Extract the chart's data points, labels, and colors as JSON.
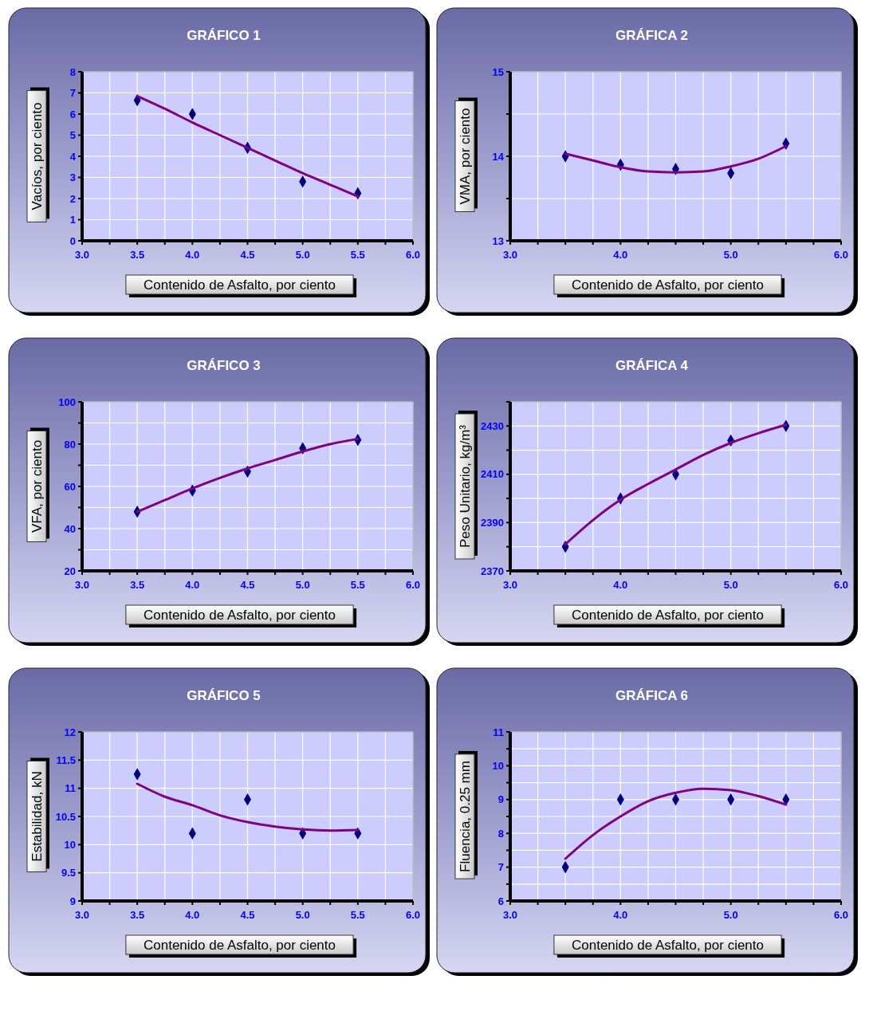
{
  "chart_data": [
    {
      "type": "scatter",
      "title": "GRÁFICO 1",
      "xlabel": "Contenido de Asfalto, por ciento",
      "ylabel": "Vacíos, por ciento",
      "xlim": [
        3,
        6
      ],
      "ylim": [
        0,
        8
      ],
      "grid": true,
      "xticks": [
        {
          "value": 3,
          "label": "3.0"
        },
        {
          "value": 3.25,
          "label": null
        },
        {
          "value": 3.5,
          "label": "3.5"
        },
        {
          "value": 3.75,
          "label": null
        },
        {
          "value": 4,
          "label": "4.0"
        },
        {
          "value": 4.25,
          "label": null
        },
        {
          "value": 4.5,
          "label": "4.5"
        },
        {
          "value": 4.75,
          "label": null
        },
        {
          "value": 5,
          "label": "5.0"
        },
        {
          "value": 5.25,
          "label": null
        },
        {
          "value": 5.5,
          "label": "5.5"
        },
        {
          "value": 5.75,
          "label": null
        },
        {
          "value": 6,
          "label": "6.0"
        }
      ],
      "yticks": [
        0,
        1,
        2,
        3,
        4,
        5,
        6,
        7,
        8
      ],
      "series": [
        {
          "marker": "diamond",
          "color": "#000080",
          "x": [
            3.5,
            4,
            4.5,
            5,
            5.5
          ],
          "values": [
            6.65,
            6.0,
            4.4,
            2.8,
            2.25
          ]
        },
        {
          "type": "line",
          "marker": "none",
          "color": "#800080",
          "x": [
            3.5,
            3.75,
            4,
            4.25,
            4.5,
            4.75,
            5,
            5.25,
            5.5
          ],
          "values": [
            6.85,
            6.25,
            5.6,
            5.0,
            4.4,
            3.8,
            3.2,
            2.65,
            2.1
          ]
        }
      ]
    },
    {
      "type": "scatter",
      "title": "GRÁFICA 2",
      "xlabel": "Contenido de Asfalto, por ciento",
      "ylabel": "VMA, por ciento",
      "xlim": [
        3,
        6
      ],
      "ylim": [
        13,
        15
      ],
      "grid": true,
      "xticks": [
        {
          "value": 3,
          "label": "3.0"
        },
        {
          "value": 3.25,
          "label": null
        },
        {
          "value": 3.5,
          "label": null
        },
        {
          "value": 3.75,
          "label": null
        },
        {
          "value": 4,
          "label": "4.0"
        },
        {
          "value": 4.25,
          "label": null
        },
        {
          "value": 4.5,
          "label": null
        },
        {
          "value": 4.75,
          "label": null
        },
        {
          "value": 5,
          "label": "5.0"
        },
        {
          "value": 5.25,
          "label": null
        },
        {
          "value": 5.5,
          "label": null
        },
        {
          "value": 5.75,
          "label": null
        },
        {
          "value": 6,
          "label": "6.0"
        }
      ],
      "yticks": [
        13,
        {
          "value": 13.5,
          "label": null
        },
        14,
        {
          "value": 14.5,
          "label": null
        },
        15
      ],
      "series": [
        {
          "marker": "diamond",
          "color": "#000080",
          "x": [
            3.5,
            4,
            4.5,
            5,
            5.5
          ],
          "values": [
            14.0,
            13.9,
            13.85,
            13.8,
            14.15
          ]
        },
        {
          "type": "line",
          "marker": "none",
          "color": "#800080",
          "x": [
            3.5,
            3.75,
            4,
            4.25,
            4.5,
            4.75,
            5,
            5.25,
            5.5
          ],
          "values": [
            14.03,
            13.95,
            13.87,
            13.82,
            13.81,
            13.82,
            13.88,
            13.97,
            14.12
          ]
        }
      ]
    },
    {
      "type": "scatter",
      "title": "GRÁFICO 3",
      "xlabel": "Contenido de Asfalto, por ciento",
      "ylabel": "VFA, por ciento",
      "xlim": [
        3,
        6
      ],
      "ylim": [
        20,
        100
      ],
      "grid": true,
      "xticks": [
        {
          "value": 3,
          "label": "3.0"
        },
        {
          "value": 3.25,
          "label": null
        },
        {
          "value": 3.5,
          "label": "3.5"
        },
        {
          "value": 3.75,
          "label": null
        },
        {
          "value": 4,
          "label": "4.0"
        },
        {
          "value": 4.25,
          "label": null
        },
        {
          "value": 4.5,
          "label": "4.5"
        },
        {
          "value": 4.75,
          "label": null
        },
        {
          "value": 5,
          "label": "5.0"
        },
        {
          "value": 5.25,
          "label": null
        },
        {
          "value": 5.5,
          "label": "5.5"
        },
        {
          "value": 5.75,
          "label": null
        },
        {
          "value": 6,
          "label": "6.0"
        }
      ],
      "yticks": [
        20,
        {
          "value": 30,
          "label": null
        },
        40,
        {
          "value": 50,
          "label": null
        },
        60,
        {
          "value": 70,
          "label": null
        },
        80,
        {
          "value": 90,
          "label": null
        },
        100
      ],
      "series": [
        {
          "marker": "diamond",
          "color": "#000080",
          "x": [
            3.5,
            4,
            4.5,
            5,
            5.5
          ],
          "values": [
            48,
            58,
            67,
            78,
            82
          ]
        },
        {
          "type": "line",
          "marker": "none",
          "color": "#800080",
          "x": [
            3.5,
            3.75,
            4,
            4.25,
            4.5,
            4.75,
            5,
            5.25,
            5.5
          ],
          "values": [
            48,
            53.5,
            59,
            64,
            68.5,
            72.5,
            76.5,
            80,
            82.5
          ]
        }
      ]
    },
    {
      "type": "scatter",
      "title": "GRÁFICA 4",
      "xlabel": "Contenido de Asfalto, por ciento",
      "ylabel": "Peso Unitario, kg/m³",
      "xlim": [
        3,
        6
      ],
      "ylim": [
        2370,
        2440
      ],
      "grid": true,
      "xticks": [
        {
          "value": 3,
          "label": "3.0"
        },
        {
          "value": 3.25,
          "label": null
        },
        {
          "value": 3.5,
          "label": null
        },
        {
          "value": 3.75,
          "label": null
        },
        {
          "value": 4,
          "label": "4.0"
        },
        {
          "value": 4.25,
          "label": null
        },
        {
          "value": 4.5,
          "label": null
        },
        {
          "value": 4.75,
          "label": null
        },
        {
          "value": 5,
          "label": "5.0"
        },
        {
          "value": 5.25,
          "label": null
        },
        {
          "value": 5.5,
          "label": null
        },
        {
          "value": 5.75,
          "label": null
        },
        {
          "value": 6,
          "label": "6.0"
        }
      ],
      "yticks": [
        2370,
        {
          "value": 2380,
          "label": null
        },
        2390,
        {
          "value": 2400,
          "label": null
        },
        2410,
        {
          "value": 2420,
          "label": null
        },
        2430,
        {
          "value": 2440,
          "label": null
        }
      ],
      "series": [
        {
          "marker": "diamond",
          "color": "#000080",
          "x": [
            3.5,
            4,
            4.5,
            5,
            5.5
          ],
          "values": [
            2380,
            2400,
            2410,
            2424,
            2430
          ]
        },
        {
          "type": "line",
          "marker": "none",
          "color": "#800080",
          "x": [
            3.5,
            3.75,
            4,
            4.25,
            4.5,
            4.75,
            5,
            5.25,
            5.5
          ],
          "values": [
            2381,
            2391,
            2399.5,
            2406,
            2412,
            2418,
            2423,
            2427,
            2430.5
          ]
        }
      ]
    },
    {
      "type": "scatter",
      "title": "GRÁFICO 5",
      "xlabel": "Contenido de Asfalto, por ciento",
      "ylabel": "Estabilidad, kN",
      "xlim": [
        3,
        6
      ],
      "ylim": [
        9,
        12
      ],
      "grid": true,
      "xticks": [
        {
          "value": 3,
          "label": "3.0"
        },
        {
          "value": 3.25,
          "label": null
        },
        {
          "value": 3.5,
          "label": "3.5"
        },
        {
          "value": 3.75,
          "label": null
        },
        {
          "value": 4,
          "label": "4.0"
        },
        {
          "value": 4.25,
          "label": null
        },
        {
          "value": 4.5,
          "label": "4.5"
        },
        {
          "value": 4.75,
          "label": null
        },
        {
          "value": 5,
          "label": "5.0"
        },
        {
          "value": 5.25,
          "label": null
        },
        {
          "value": 5.5,
          "label": "5.5"
        },
        {
          "value": 5.75,
          "label": null
        },
        {
          "value": 6,
          "label": "6.0"
        }
      ],
      "yticks": [
        9,
        9.5,
        10,
        10.5,
        11,
        11.5,
        12
      ],
      "series": [
        {
          "marker": "diamond",
          "color": "#000080",
          "x": [
            3.5,
            4,
            4.5,
            5,
            5.5
          ],
          "values": [
            11.25,
            10.2,
            10.8,
            10.2,
            10.2
          ]
        },
        {
          "type": "line",
          "marker": "none",
          "color": "#800080",
          "x": [
            3.5,
            3.75,
            4,
            4.25,
            4.5,
            4.75,
            5,
            5.25,
            5.5
          ],
          "values": [
            11.08,
            10.85,
            10.7,
            10.52,
            10.4,
            10.32,
            10.27,
            10.25,
            10.26
          ]
        }
      ]
    },
    {
      "type": "scatter",
      "title": "GRÁFICA 6",
      "xlabel": "Contenido de Asfalto, por ciento",
      "ylabel": "Fluencia, 0.25 mm",
      "xlim": [
        3,
        6
      ],
      "ylim": [
        6,
        11
      ],
      "grid": true,
      "xticks": [
        {
          "value": 3,
          "label": "3.0"
        },
        {
          "value": 3.25,
          "label": null
        },
        {
          "value": 3.5,
          "label": null
        },
        {
          "value": 3.75,
          "label": null
        },
        {
          "value": 4,
          "label": "4.0"
        },
        {
          "value": 4.25,
          "label": null
        },
        {
          "value": 4.5,
          "label": null
        },
        {
          "value": 4.75,
          "label": null
        },
        {
          "value": 5,
          "label": "5.0"
        },
        {
          "value": 5.25,
          "label": null
        },
        {
          "value": 5.5,
          "label": null
        },
        {
          "value": 5.75,
          "label": null
        },
        {
          "value": 6,
          "label": "6.0"
        }
      ],
      "yticks": [
        6,
        {
          "value": 6.5,
          "label": null
        },
        7,
        {
          "value": 7.5,
          "label": null
        },
        8,
        {
          "value": 8.5,
          "label": null
        },
        9,
        {
          "value": 9.5,
          "label": null
        },
        10,
        {
          "value": 10.5,
          "label": null
        },
        11
      ],
      "series": [
        {
          "marker": "diamond",
          "color": "#000080",
          "x": [
            3.5,
            4,
            4.5,
            5,
            5.5
          ],
          "values": [
            7,
            9,
            9,
            9,
            9
          ]
        },
        {
          "type": "line",
          "marker": "none",
          "color": "#800080",
          "x": [
            3.5,
            3.75,
            4,
            4.25,
            4.5,
            4.75,
            5,
            5.25,
            5.5
          ],
          "values": [
            7.25,
            7.95,
            8.5,
            8.95,
            9.2,
            9.32,
            9.28,
            9.1,
            8.85
          ]
        }
      ]
    }
  ]
}
